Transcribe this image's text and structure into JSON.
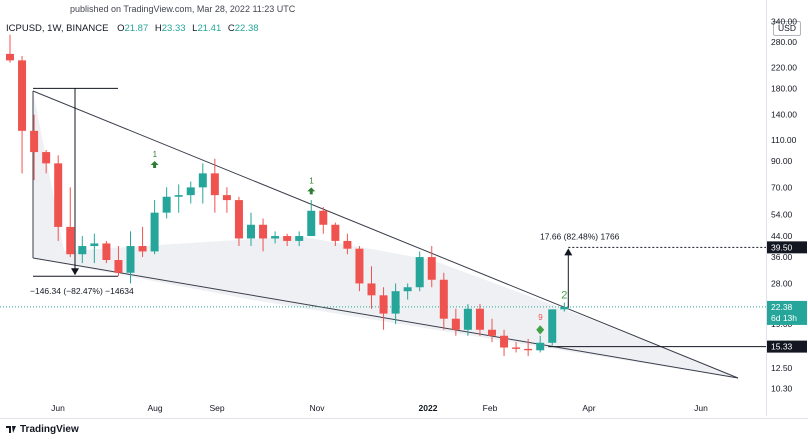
{
  "header": {
    "published": "published on TradingView.com, Mar 28, 2022 11:23 UTC",
    "symbol": "ICPUSD, 1W, BINANCE",
    "o_label": "O",
    "o": "21.87",
    "h_label": "H",
    "h": "23.33",
    "l_label": "L",
    "l": "21.41",
    "c_label": "C",
    "c": "22.38"
  },
  "footer": {
    "brand": "TradingView"
  },
  "colors": {
    "up": "#26a69a",
    "down": "#ef5350",
    "signal_up": "#2e7d32",
    "signal_count": "#f57c00"
  },
  "chart_data": {
    "type": "candlestick",
    "title": "",
    "y_scale": "log",
    "currency": "USD",
    "y_ticks": [
      "340.00",
      "280.00",
      "220.00",
      "180.00",
      "140.00",
      "110.00",
      "90.00",
      "70.00",
      "54.00",
      "44.00",
      "36.00",
      "28.00",
      "19.00",
      "12.50",
      "10.30"
    ],
    "x_ticks": [
      "Jun",
      "Aug",
      "Sep",
      "Nov",
      "2022",
      "Feb",
      "Apr",
      "Jun"
    ],
    "candles": [
      {
        "o": 250,
        "h": 300,
        "l": 230,
        "c": 235
      },
      {
        "o": 235,
        "h": 245,
        "l": 80,
        "c": 120
      },
      {
        "o": 120,
        "h": 140,
        "l": 75,
        "c": 98
      },
      {
        "o": 98,
        "h": 100,
        "l": 80,
        "c": 88
      },
      {
        "o": 88,
        "h": 95,
        "l": 42,
        "c": 48
      },
      {
        "o": 48,
        "h": 70,
        "l": 36,
        "c": 37
      },
      {
        "o": 37,
        "h": 44,
        "l": 34,
        "c": 40
      },
      {
        "o": 40,
        "h": 45,
        "l": 34,
        "c": 41
      },
      {
        "o": 41,
        "h": 42,
        "l": 34,
        "c": 35
      },
      {
        "o": 35,
        "h": 40,
        "l": 30,
        "c": 31
      },
      {
        "o": 31,
        "h": 46,
        "l": 28,
        "c": 40
      },
      {
        "o": 40,
        "h": 48,
        "l": 36,
        "c": 38
      },
      {
        "o": 38,
        "h": 62,
        "l": 37,
        "c": 55
      },
      {
        "o": 55,
        "h": 70,
        "l": 52,
        "c": 64
      },
      {
        "o": 64,
        "h": 72,
        "l": 55,
        "c": 65
      },
      {
        "o": 65,
        "h": 74,
        "l": 60,
        "c": 70
      },
      {
        "o": 70,
        "h": 88,
        "l": 60,
        "c": 80
      },
      {
        "o": 80,
        "h": 92,
        "l": 55,
        "c": 65
      },
      {
        "o": 65,
        "h": 70,
        "l": 55,
        "c": 62
      },
      {
        "o": 62,
        "h": 64,
        "l": 40,
        "c": 43
      },
      {
        "o": 43,
        "h": 55,
        "l": 40,
        "c": 49
      },
      {
        "o": 49,
        "h": 52,
        "l": 38,
        "c": 43
      },
      {
        "o": 43,
        "h": 46,
        "l": 41,
        "c": 44
      },
      {
        "o": 44,
        "h": 45,
        "l": 40,
        "c": 42
      },
      {
        "o": 42,
        "h": 46,
        "l": 40,
        "c": 44
      },
      {
        "o": 44,
        "h": 62,
        "l": 44,
        "c": 56
      },
      {
        "o": 56,
        "h": 58,
        "l": 45,
        "c": 49
      },
      {
        "o": 49,
        "h": 50,
        "l": 40,
        "c": 42
      },
      {
        "o": 42,
        "h": 45,
        "l": 37,
        "c": 39
      },
      {
        "o": 39,
        "h": 40,
        "l": 26,
        "c": 28
      },
      {
        "o": 28,
        "h": 33,
        "l": 22,
        "c": 25
      },
      {
        "o": 25,
        "h": 27,
        "l": 18,
        "c": 21
      },
      {
        "o": 21,
        "h": 28,
        "l": 19,
        "c": 26
      },
      {
        "o": 26,
        "h": 28,
        "l": 24,
        "c": 27
      },
      {
        "o": 27,
        "h": 38,
        "l": 26,
        "c": 36
      },
      {
        "o": 36,
        "h": 40,
        "l": 27,
        "c": 29
      },
      {
        "o": 29,
        "h": 31,
        "l": 18,
        "c": 20
      },
      {
        "o": 20,
        "h": 22,
        "l": 17,
        "c": 18
      },
      {
        "o": 18,
        "h": 23,
        "l": 17,
        "c": 22
      },
      {
        "o": 22,
        "h": 23,
        "l": 17,
        "c": 18
      },
      {
        "o": 18,
        "h": 20,
        "l": 16,
        "c": 17
      },
      {
        "o": 17,
        "h": 18,
        "l": 14,
        "c": 15.2
      },
      {
        "o": 15.2,
        "h": 16,
        "l": 14.5,
        "c": 15
      },
      {
        "o": 15,
        "h": 16.5,
        "l": 14,
        "c": 14.8
      },
      {
        "o": 14.8,
        "h": 17,
        "l": 14.5,
        "c": 15.9
      },
      {
        "o": 15.9,
        "h": 21.5,
        "l": 15.5,
        "c": 21.87
      },
      {
        "o": 21.87,
        "h": 23.33,
        "l": 21.41,
        "c": 22.38
      }
    ],
    "price_labels": {
      "current": {
        "value": "22.38",
        "sub": "6d 13h"
      },
      "target": "39.50",
      "support": "15.33"
    },
    "annotations": {
      "drop_measure": "−146.34 (−82.47%) −14634",
      "rise_measure": "17.66 (82.48%) 1766",
      "td_one": "1",
      "td_nine": "9",
      "td_two": "2"
    }
  }
}
